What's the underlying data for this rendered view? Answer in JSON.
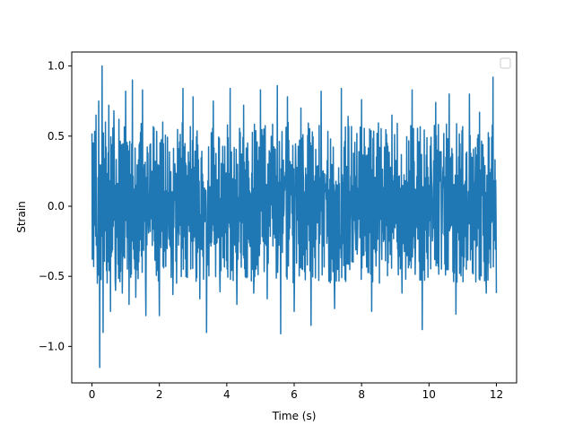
{
  "chart_data": {
    "type": "line",
    "title": "",
    "xlabel": "Time (s)",
    "ylabel": "Strain",
    "xlim": [
      -0.6,
      12.6
    ],
    "ylim": [
      -1.26,
      1.1
    ],
    "xticks": [
      0,
      2,
      4,
      6,
      8,
      10,
      12
    ],
    "xtick_labels": [
      "0",
      "2",
      "4",
      "6",
      "8",
      "10",
      "12"
    ],
    "yticks": [
      -1.0,
      -0.5,
      0.0,
      0.5,
      1.0
    ],
    "ytick_labels": [
      "−1.0",
      "−0.5",
      "0.0",
      "0.5",
      "1.0"
    ],
    "grid": false,
    "legend": {
      "placement": "upper right",
      "entries": []
    },
    "series": [
      {
        "color": "#1f77b4",
        "x_range": [
          0,
          12
        ],
        "sample_count": 1201,
        "peaks": [
          {
            "x": 0.0,
            "y": 0.52
          },
          {
            "x": 0.05,
            "y": -0.43
          },
          {
            "x": 0.12,
            "y": 0.65
          },
          {
            "x": 0.16,
            "y": -0.55
          },
          {
            "x": 0.2,
            "y": 0.75
          },
          {
            "x": 0.23,
            "y": -1.15
          },
          {
            "x": 0.3,
            "y": 1.0
          },
          {
            "x": 0.33,
            "y": -0.9
          },
          {
            "x": 0.4,
            "y": 0.6
          },
          {
            "x": 0.5,
            "y": 0.72
          },
          {
            "x": 0.55,
            "y": -0.75
          },
          {
            "x": 0.65,
            "y": 0.68
          },
          {
            "x": 0.7,
            "y": -0.6
          },
          {
            "x": 0.8,
            "y": 0.62
          },
          {
            "x": 0.9,
            "y": -0.62
          },
          {
            "x": 1.0,
            "y": 0.82
          },
          {
            "x": 1.1,
            "y": -0.7
          },
          {
            "x": 1.2,
            "y": 0.9
          },
          {
            "x": 1.3,
            "y": -0.65
          },
          {
            "x": 1.5,
            "y": 0.83
          },
          {
            "x": 1.6,
            "y": -0.78
          },
          {
            "x": 2.0,
            "y": -0.78
          },
          {
            "x": 2.1,
            "y": 0.6
          },
          {
            "x": 2.4,
            "y": -0.63
          },
          {
            "x": 2.7,
            "y": 0.84
          },
          {
            "x": 3.0,
            "y": 0.78
          },
          {
            "x": 3.2,
            "y": -0.66
          },
          {
            "x": 3.4,
            "y": -0.9
          },
          {
            "x": 3.6,
            "y": 0.75
          },
          {
            "x": 3.8,
            "y": -0.61
          },
          {
            "x": 4.1,
            "y": 0.84
          },
          {
            "x": 4.3,
            "y": -0.7
          },
          {
            "x": 4.5,
            "y": 0.72
          },
          {
            "x": 4.8,
            "y": -0.62
          },
          {
            "x": 5.0,
            "y": 0.83
          },
          {
            "x": 5.2,
            "y": -0.66
          },
          {
            "x": 5.5,
            "y": 0.86
          },
          {
            "x": 5.6,
            "y": -0.91
          },
          {
            "x": 5.8,
            "y": 0.78
          },
          {
            "x": 6.0,
            "y": -0.75
          },
          {
            "x": 6.2,
            "y": 0.7
          },
          {
            "x": 6.5,
            "y": -0.85
          },
          {
            "x": 6.8,
            "y": 0.82
          },
          {
            "x": 7.2,
            "y": -0.73
          },
          {
            "x": 7.4,
            "y": 0.84
          },
          {
            "x": 7.6,
            "y": 0.64
          },
          {
            "x": 8.0,
            "y": 0.76
          },
          {
            "x": 8.3,
            "y": -0.75
          },
          {
            "x": 8.6,
            "y": -0.38
          },
          {
            "x": 8.9,
            "y": 0.65
          },
          {
            "x": 9.2,
            "y": -0.62
          },
          {
            "x": 9.5,
            "y": 0.83
          },
          {
            "x": 9.8,
            "y": -0.88
          },
          {
            "x": 10.2,
            "y": 0.74
          },
          {
            "x": 10.6,
            "y": 0.8
          },
          {
            "x": 10.8,
            "y": -0.77
          },
          {
            "x": 11.2,
            "y": 0.8
          },
          {
            "x": 11.5,
            "y": 0.67
          },
          {
            "x": 11.7,
            "y": -0.62
          },
          {
            "x": 11.9,
            "y": 0.92
          },
          {
            "x": 12.0,
            "y": -0.62
          }
        ],
        "typical_envelope": [
          -0.55,
          0.6
        ]
      }
    ]
  }
}
